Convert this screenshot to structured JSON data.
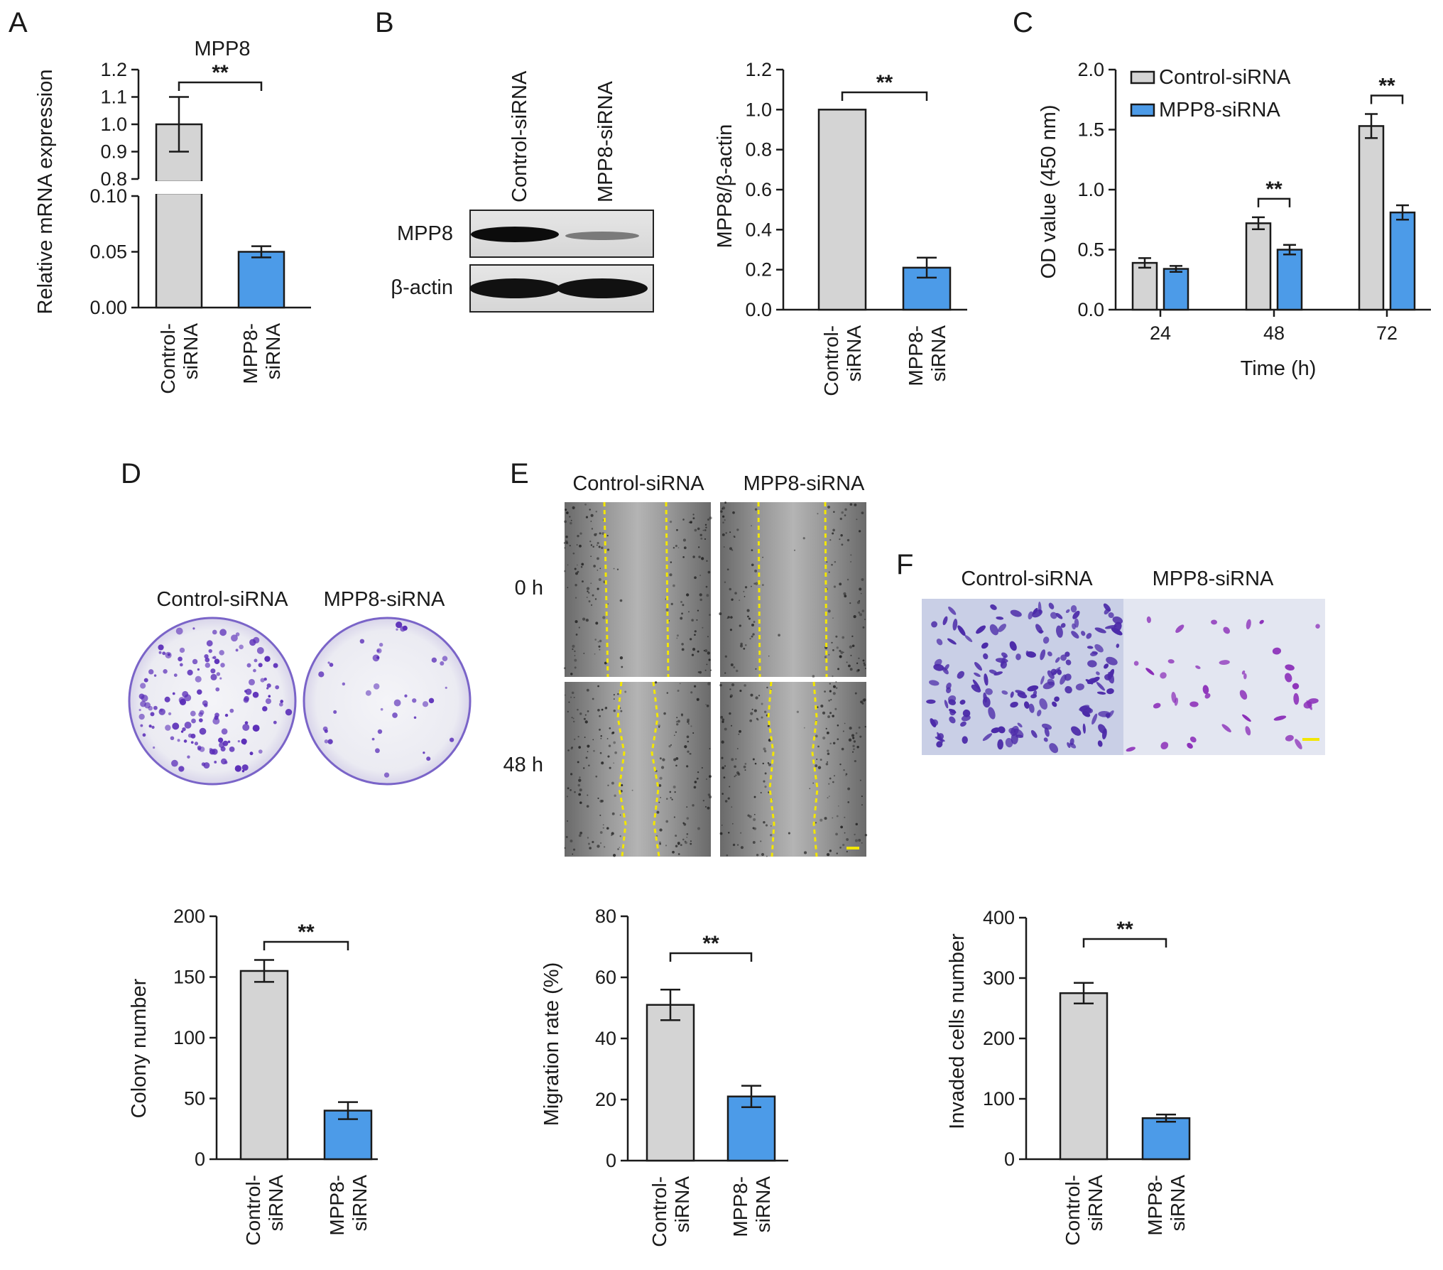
{
  "panels": {
    "A": {
      "letter": "A"
    },
    "B": {
      "letter": "B",
      "blot": {
        "lanes": [
          "Control-siRNA",
          "MPP8-siRNA"
        ],
        "rows": [
          "MPP8",
          "β-actin"
        ]
      }
    },
    "C": {
      "letter": "C"
    },
    "D": {
      "letter": "D",
      "photo_labels": [
        "Control-siRNA",
        "MPP8-siRNA"
      ]
    },
    "E": {
      "letter": "E",
      "photo_labels": [
        "Control-siRNA",
        "MPP8-siRNA"
      ],
      "row_labels": [
        "0 h",
        "48 h"
      ]
    },
    "F": {
      "letter": "F",
      "photo_labels": [
        "Control-siRNA",
        "MPP8-siRNA"
      ]
    }
  },
  "colors": {
    "control": "#d4d4d4",
    "mpp8": "#4c9be8",
    "stain": "#5a2db8",
    "guide_line": "#f2e600"
  },
  "chart_data": [
    {
      "id": "A",
      "type": "bar",
      "title": "MPP8",
      "ylabel": "Relative mRNA expression",
      "categories": [
        "Control-\nsiRNA",
        "MPP8-\nsiRNA"
      ],
      "values": [
        1.0,
        0.05
      ],
      "errors": [
        0.1,
        0.005
      ],
      "ylim_lower": [
        0,
        0.1
      ],
      "ylim_upper": [
        0.8,
        1.2
      ],
      "yticks_lower": [
        "0.00",
        "0.05",
        "0.10"
      ],
      "yticks_upper": [
        "0.8",
        "0.9",
        "1.0",
        "1.1",
        "1.2"
      ],
      "significance": [
        {
          "between": [
            0,
            1
          ],
          "label": "**"
        }
      ]
    },
    {
      "id": "B",
      "type": "bar",
      "ylabel": "MPP8/β-actin",
      "categories": [
        "Control-\nsiRNA",
        "MPP8-\nsiRNA"
      ],
      "values": [
        1.0,
        0.21
      ],
      "errors": [
        0,
        0.05
      ],
      "ylim": [
        0,
        1.2
      ],
      "yticks": [
        "0.0",
        "0.2",
        "0.4",
        "0.6",
        "0.8",
        "1.0",
        "1.2"
      ],
      "significance": [
        {
          "between": [
            0,
            1
          ],
          "label": "**"
        }
      ]
    },
    {
      "id": "C",
      "type": "bar",
      "xlabel": "Time (h)",
      "ylabel": "OD value (450 nm)",
      "categories": [
        "24",
        "48",
        "72"
      ],
      "series": [
        {
          "name": "Control-siRNA",
          "values": [
            0.39,
            0.72,
            1.53
          ],
          "errors": [
            0.04,
            0.05,
            0.1
          ]
        },
        {
          "name": "MPP8-siRNA",
          "values": [
            0.34,
            0.5,
            0.81
          ],
          "errors": [
            0.025,
            0.04,
            0.06
          ]
        }
      ],
      "ylim": [
        0,
        2.0
      ],
      "yticks": [
        "0.0",
        "0.5",
        "1.0",
        "1.5",
        "2.0"
      ],
      "legend": "top-left",
      "significance": [
        {
          "group": 1,
          "label": "**"
        },
        {
          "group": 2,
          "label": "**"
        }
      ]
    },
    {
      "id": "D",
      "type": "bar",
      "ylabel": "Colony number",
      "categories": [
        "Control-\nsiRNA",
        "MPP8-\nsiRNA"
      ],
      "values": [
        155,
        40
      ],
      "errors": [
        9,
        7
      ],
      "ylim": [
        0,
        200
      ],
      "yticks": [
        "0",
        "50",
        "100",
        "150",
        "200"
      ],
      "significance": [
        {
          "between": [
            0,
            1
          ],
          "label": "**"
        }
      ]
    },
    {
      "id": "E",
      "type": "bar",
      "ylabel": "Migration rate (%)",
      "categories": [
        "Control-\nsiRNA",
        "MPP8-\nsiRNA"
      ],
      "values": [
        51,
        21
      ],
      "errors": [
        5,
        3.5
      ],
      "ylim": [
        0,
        80
      ],
      "yticks": [
        "0",
        "20",
        "40",
        "60",
        "80"
      ],
      "significance": [
        {
          "between": [
            0,
            1
          ],
          "label": "**"
        }
      ]
    },
    {
      "id": "F",
      "type": "bar",
      "ylabel": "Invaded cells number",
      "categories": [
        "Control-\nsiRNA",
        "MPP8-\nsiRNA"
      ],
      "values": [
        275,
        68
      ],
      "errors": [
        17,
        6
      ],
      "ylim": [
        0,
        400
      ],
      "yticks": [
        "0",
        "100",
        "200",
        "300",
        "400"
      ],
      "significance": [
        {
          "between": [
            0,
            1
          ],
          "label": "**"
        }
      ]
    }
  ]
}
